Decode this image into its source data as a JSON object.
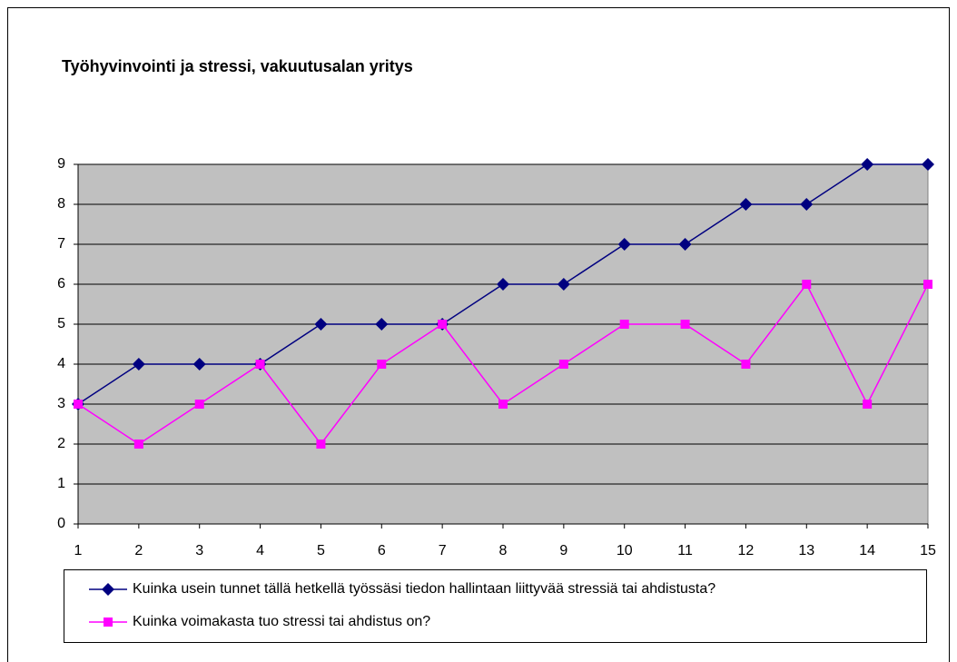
{
  "chart_data": {
    "type": "line",
    "title": "Työhyvinvointi ja stressi, vakuutusalan yritys",
    "x": [
      1,
      2,
      3,
      4,
      5,
      6,
      7,
      8,
      9,
      10,
      11,
      12,
      13,
      14,
      15
    ],
    "series": [
      {
        "name": "Kuinka usein tunnet tällä hetkellä työssäsi tiedon hallintaan liittyvää stressiä tai ahdistusta?",
        "color": "#000080",
        "marker": "diamond",
        "values": [
          3,
          4,
          4,
          4,
          5,
          5,
          5,
          6,
          6,
          7,
          7,
          8,
          8,
          9,
          9
        ]
      },
      {
        "name": "Kuinka voimakasta tuo stressi tai ahdistus on?",
        "color": "#ff00ff",
        "marker": "square",
        "values": [
          3,
          2,
          3,
          4,
          2,
          4,
          5,
          3,
          4,
          5,
          5,
          4,
          6,
          3,
          6
        ]
      }
    ],
    "xlim": [
      1,
      15
    ],
    "xticks": [
      1,
      2,
      3,
      4,
      5,
      6,
      7,
      8,
      9,
      10,
      11,
      12,
      13,
      14,
      15
    ],
    "ylim": [
      0,
      9
    ],
    "yticks": [
      0,
      1,
      2,
      3,
      4,
      5,
      6,
      7,
      8,
      9
    ],
    "grid": true,
    "legend": "bottom"
  }
}
